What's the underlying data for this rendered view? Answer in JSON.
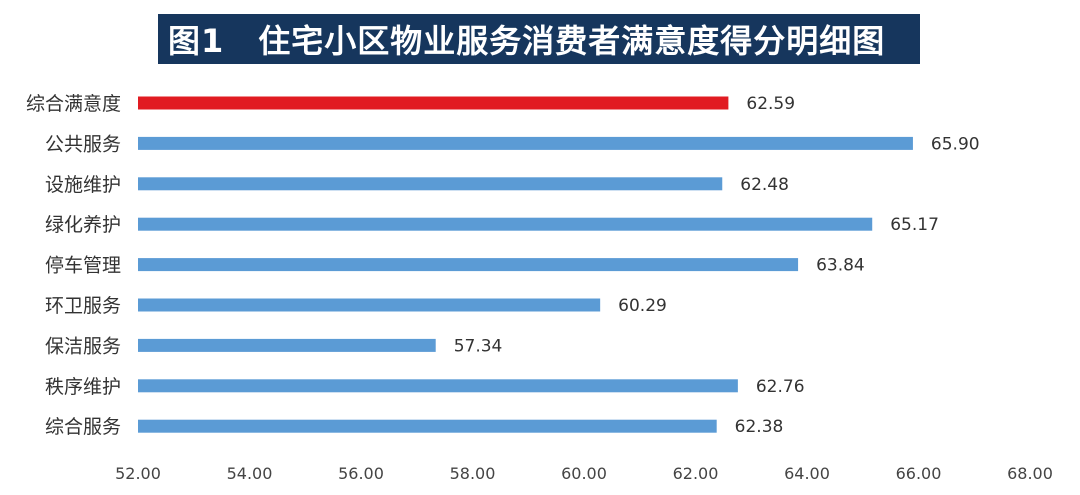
{
  "title": {
    "prefix": "图1",
    "text": "住宅小区物业服务消费者满意度得分明细图"
  },
  "colors": {
    "banner_bg": "#16365d",
    "highlight_bar": "#e11b22",
    "bar": "#5b9bd5"
  },
  "chart_data": {
    "type": "bar",
    "orientation": "horizontal",
    "title": "图1 住宅小区物业服务消费者满意度得分明细图",
    "categories": [
      "综合满意度",
      "公共服务",
      "设施维护",
      "绿化养护",
      "停车管理",
      "环卫服务",
      "保洁服务",
      "秩序维护",
      "综合服务"
    ],
    "values": [
      62.59,
      65.9,
      62.48,
      65.17,
      63.84,
      60.29,
      57.34,
      62.76,
      62.38
    ],
    "value_labels": [
      "62.59",
      "65.90",
      "62.48",
      "65.17",
      "63.84",
      "60.29",
      "57.34",
      "62.76",
      "62.38"
    ],
    "highlight_index": 0,
    "xlim": [
      52,
      68
    ],
    "xticks": [
      52,
      54,
      56,
      58,
      60,
      62,
      64,
      66,
      68
    ],
    "xtick_labels": [
      "52.00",
      "54.00",
      "56.00",
      "58.00",
      "60.00",
      "62.00",
      "64.00",
      "66.00",
      "68.00"
    ],
    "grid": false,
    "legend": "none"
  }
}
